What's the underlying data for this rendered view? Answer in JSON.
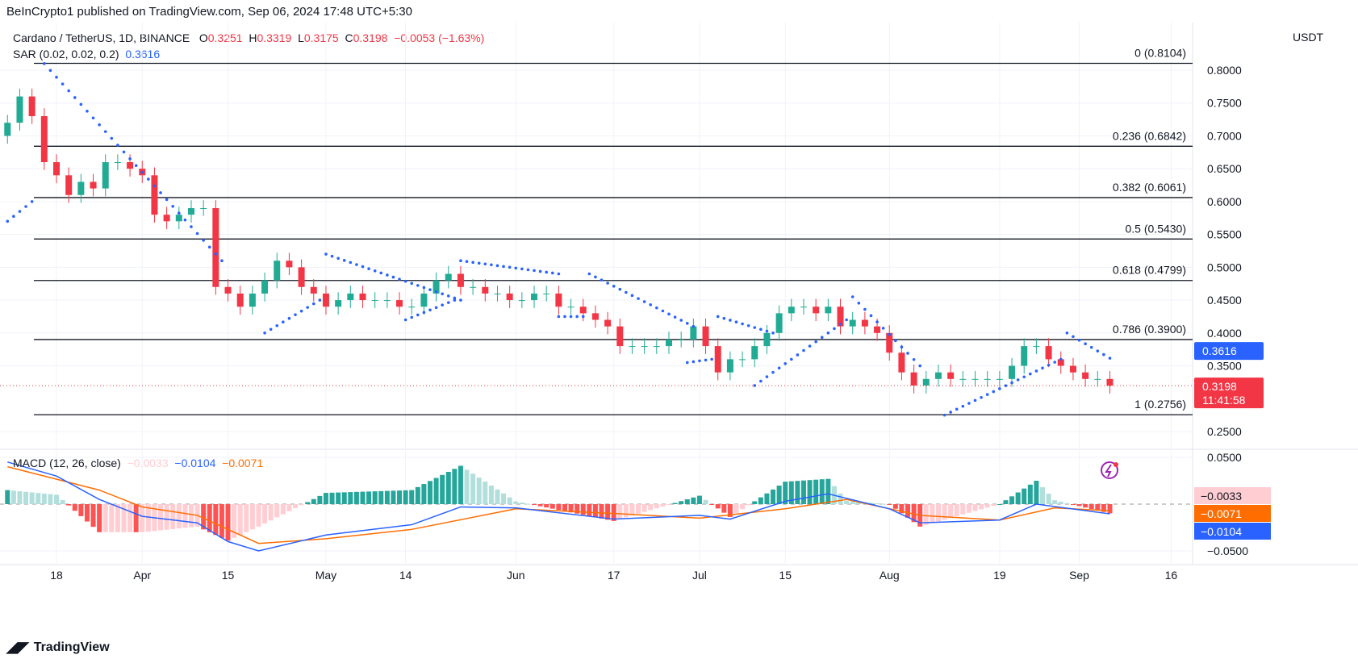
{
  "publisher_line": "BeInCrypto1 published on TradingView.com, Sep 06, 2024 17:48 UTC+5:30",
  "symbol": {
    "title": "Cardano / TetherUS, 1D, BINANCE",
    "o_label": "O",
    "o": "0.3251",
    "h_label": "H",
    "h": "0.3319",
    "l_label": "L",
    "l": "0.3175",
    "c_label": "C",
    "c": "0.3198",
    "change": "−0.0053 (−1.63%)"
  },
  "sar_legend": {
    "label": "SAR (0.02, 0.02, 0.2)",
    "value": "0.3616"
  },
  "macd_legend": {
    "label": "MACD (12, 26, close)",
    "hist": "−0.0033",
    "macd": "−0.0104",
    "signal": "−0.0071"
  },
  "currency": "USDT",
  "footer": "TradingView",
  "colors": {
    "up": "#22ab94",
    "down": "#f23645",
    "sar": "#2962ff",
    "macd": "#2962ff",
    "signal": "#ff6d00",
    "hist_neg": "#ffcdd2",
    "hist_neg_strong": "#ff5252",
    "hist_pos": "#b2dfdb",
    "hist_pos_strong": "#26a69a",
    "countdown_icon": "#9c27b0"
  },
  "chart_data": [
    {
      "type": "candlestick",
      "title": "Cardano / TetherUS, 1D, BINANCE",
      "ylim": [
        0.22,
        0.84
      ],
      "y_ticks": [
        "0.8000",
        "0.7500",
        "0.7000",
        "0.6500",
        "0.6000",
        "0.5500",
        "0.5000",
        "0.4500",
        "0.4000",
        "0.3500",
        "0.2500"
      ],
      "x_ticks": [
        {
          "date": "2024-03-18",
          "label": "18"
        },
        {
          "date": "2024-04-01",
          "label": "Apr"
        },
        {
          "date": "2024-04-15",
          "label": "15"
        },
        {
          "date": "2024-05-01",
          "label": "May"
        },
        {
          "date": "2024-05-14",
          "label": "14"
        },
        {
          "date": "2024-06-01",
          "label": "Jun"
        },
        {
          "date": "2024-06-17",
          "label": "17"
        },
        {
          "date": "2024-07-01",
          "label": "Jul"
        },
        {
          "date": "2024-07-15",
          "label": "15"
        },
        {
          "date": "2024-08-01",
          "label": "Aug"
        },
        {
          "date": "2024-08-19",
          "label": "19"
        },
        {
          "date": "2024-09-01",
          "label": "Sep"
        },
        {
          "date": "2024-09-16",
          "label": "16"
        }
      ],
      "start_date": "2024-03-10",
      "step_days": 2,
      "open_first": 0.7,
      "closes": [
        0.72,
        0.76,
        0.73,
        0.66,
        0.64,
        0.61,
        0.63,
        0.62,
        0.66,
        0.66,
        0.65,
        0.64,
        0.58,
        0.57,
        0.58,
        0.59,
        0.59,
        0.47,
        0.46,
        0.44,
        0.46,
        0.48,
        0.51,
        0.5,
        0.47,
        0.46,
        0.44,
        0.45,
        0.46,
        0.45,
        0.45,
        0.45,
        0.44,
        0.44,
        0.46,
        0.48,
        0.49,
        0.47,
        0.47,
        0.46,
        0.46,
        0.45,
        0.45,
        0.46,
        0.46,
        0.44,
        0.44,
        0.43,
        0.42,
        0.41,
        0.38,
        0.38,
        0.38,
        0.38,
        0.39,
        0.39,
        0.41,
        0.38,
        0.34,
        0.36,
        0.36,
        0.38,
        0.4,
        0.43,
        0.44,
        0.44,
        0.43,
        0.44,
        0.41,
        0.42,
        0.41,
        0.4,
        0.37,
        0.34,
        0.32,
        0.33,
        0.34,
        0.33,
        0.33,
        0.33,
        0.33,
        0.33,
        0.35,
        0.38,
        0.38,
        0.36,
        0.35,
        0.34,
        0.33,
        0.33,
        0.3198
      ],
      "last_price": {
        "value": 0.3198,
        "label": "0.3198",
        "countdown": "11:41:58"
      },
      "sar_current": {
        "value": 0.3616,
        "label": "0.3616"
      },
      "sar_segments": [
        {
          "from": "2024-03-10",
          "to": "2024-03-14",
          "v0": 0.57,
          "v1": 0.6
        },
        {
          "from": "2024-03-16",
          "to": "2024-04-14",
          "v0": 0.81,
          "v1": 0.51
        },
        {
          "from": "2024-04-21",
          "to": "2024-04-30",
          "v0": 0.4,
          "v1": 0.45
        },
        {
          "from": "2024-05-01",
          "to": "2024-05-23",
          "v0": 0.52,
          "v1": 0.45
        },
        {
          "from": "2024-05-14",
          "to": "2024-05-22",
          "v0": 0.42,
          "v1": 0.45
        },
        {
          "from": "2024-05-23",
          "to": "2024-06-08",
          "v0": 0.51,
          "v1": 0.49
        },
        {
          "from": "2024-06-08",
          "to": "2024-06-12",
          "v0": 0.425,
          "v1": 0.425
        },
        {
          "from": "2024-06-13",
          "to": "2024-06-30",
          "v0": 0.49,
          "v1": 0.41
        },
        {
          "from": "2024-06-29",
          "to": "2024-07-03",
          "v0": 0.355,
          "v1": 0.36
        },
        {
          "from": "2024-07-04",
          "to": "2024-07-13",
          "v0": 0.425,
          "v1": 0.4
        },
        {
          "from": "2024-07-10",
          "to": "2024-07-25",
          "v0": 0.32,
          "v1": 0.42
        },
        {
          "from": "2024-07-26",
          "to": "2024-08-06",
          "v0": 0.455,
          "v1": 0.35
        },
        {
          "from": "2024-08-10",
          "to": "2024-08-29",
          "v0": 0.275,
          "v1": 0.36
        },
        {
          "from": "2024-08-30",
          "to": "2024-09-06",
          "v0": 0.4,
          "v1": 0.3616
        }
      ],
      "fib_levels": [
        {
          "ratio": "0",
          "price": 0.8104,
          "label": "0 (0.8104)"
        },
        {
          "ratio": "0.236",
          "price": 0.6842,
          "label": "0.236 (0.6842)"
        },
        {
          "ratio": "0.382",
          "price": 0.6061,
          "label": "0.382 (0.6061)"
        },
        {
          "ratio": "0.5",
          "price": 0.543,
          "label": "0.5 (0.5430)"
        },
        {
          "ratio": "0.618",
          "price": 0.4799,
          "label": "0.618 (0.4799)"
        },
        {
          "ratio": "0.786",
          "price": 0.39,
          "label": "0.786 (0.3900)"
        },
        {
          "ratio": "1",
          "price": 0.2756,
          "label": "1 (0.2756)"
        }
      ]
    },
    {
      "type": "line",
      "title": "MACD (12, 26, close)",
      "ylim": [
        -0.06,
        0.06
      ],
      "y_ticks": [
        "0.0500",
        "−0.0500"
      ],
      "macd": [
        [
          "2024-03-10",
          0.045
        ],
        [
          "2024-03-18",
          0.03
        ],
        [
          "2024-03-25",
          0.005
        ],
        [
          "2024-04-01",
          -0.013
        ],
        [
          "2024-04-10",
          -0.02
        ],
        [
          "2024-04-15",
          -0.04
        ],
        [
          "2024-04-20",
          -0.05
        ],
        [
          "2024-05-01",
          -0.033
        ],
        [
          "2024-05-15",
          -0.022
        ],
        [
          "2024-05-23",
          -0.003
        ],
        [
          "2024-06-01",
          -0.004
        ],
        [
          "2024-06-17",
          -0.016
        ],
        [
          "2024-07-01",
          -0.012
        ],
        [
          "2024-07-06",
          -0.016
        ],
        [
          "2024-07-15",
          0.003
        ],
        [
          "2024-07-22",
          0.011
        ],
        [
          "2024-08-01",
          -0.005
        ],
        [
          "2024-08-06",
          -0.02
        ],
        [
          "2024-08-19",
          -0.017
        ],
        [
          "2024-08-25",
          0.0
        ],
        [
          "2024-09-06",
          -0.0104
        ]
      ],
      "signal": [
        [
          "2024-03-10",
          0.04
        ],
        [
          "2024-03-25",
          0.015
        ],
        [
          "2024-04-01",
          -0.003
        ],
        [
          "2024-04-10",
          -0.012
        ],
        [
          "2024-04-20",
          -0.042
        ],
        [
          "2024-05-01",
          -0.037
        ],
        [
          "2024-05-15",
          -0.027
        ],
        [
          "2024-06-01",
          -0.005
        ],
        [
          "2024-06-17",
          -0.01
        ],
        [
          "2024-07-01",
          -0.015
        ],
        [
          "2024-07-15",
          -0.005
        ],
        [
          "2024-07-25",
          0.005
        ],
        [
          "2024-08-06",
          -0.012
        ],
        [
          "2024-08-19",
          -0.017
        ],
        [
          "2024-08-28",
          -0.004
        ],
        [
          "2024-09-06",
          -0.0071
        ]
      ],
      "labels": {
        "hist": "−0.0033",
        "signal": "−0.0071",
        "macd": "−0.0104"
      }
    }
  ]
}
